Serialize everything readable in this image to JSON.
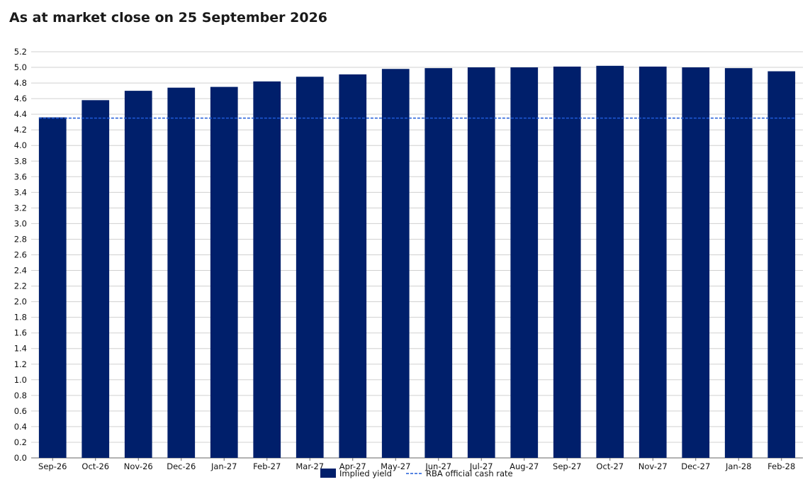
{
  "chart_data": {
    "type": "bar",
    "title": "As at market close on 25 September 2026",
    "xlabel": "",
    "ylabel": "",
    "categories": [
      "Sep-26",
      "Oct-26",
      "Nov-26",
      "Dec-26",
      "Jan-27",
      "Feb-27",
      "Mar-27",
      "Apr-27",
      "May-27",
      "Jun-27",
      "Jul-27",
      "Aug-27",
      "Sep-27",
      "Oct-27",
      "Nov-27",
      "Dec-27",
      "Jan-28",
      "Feb-28"
    ],
    "series": [
      {
        "name": "Implied yield",
        "type": "bar",
        "color": "#001f6b",
        "values": [
          4.36,
          4.58,
          4.7,
          4.74,
          4.75,
          4.82,
          4.88,
          4.91,
          4.98,
          4.99,
          5.0,
          5.0,
          5.01,
          5.02,
          5.01,
          5.0,
          4.99,
          4.95
        ]
      },
      {
        "name": "RBA official cash rate",
        "type": "line",
        "style": "dashed",
        "color": "#1f5bd8",
        "value": 4.35
      }
    ],
    "ylim": [
      0,
      5.2
    ],
    "ytick_step": 0.2,
    "yticks": [
      "0.0",
      "0.2",
      "0.4",
      "0.6",
      "0.8",
      "1.0",
      "1.2",
      "1.4",
      "1.6",
      "1.8",
      "2.0",
      "2.2",
      "2.4",
      "2.6",
      "2.8",
      "3.0",
      "3.2",
      "3.4",
      "3.6",
      "3.8",
      "4.0",
      "4.2",
      "4.4",
      "4.6",
      "4.8",
      "5.0",
      "5.2"
    ],
    "grid": true,
    "legend_position": "bottom-center"
  }
}
